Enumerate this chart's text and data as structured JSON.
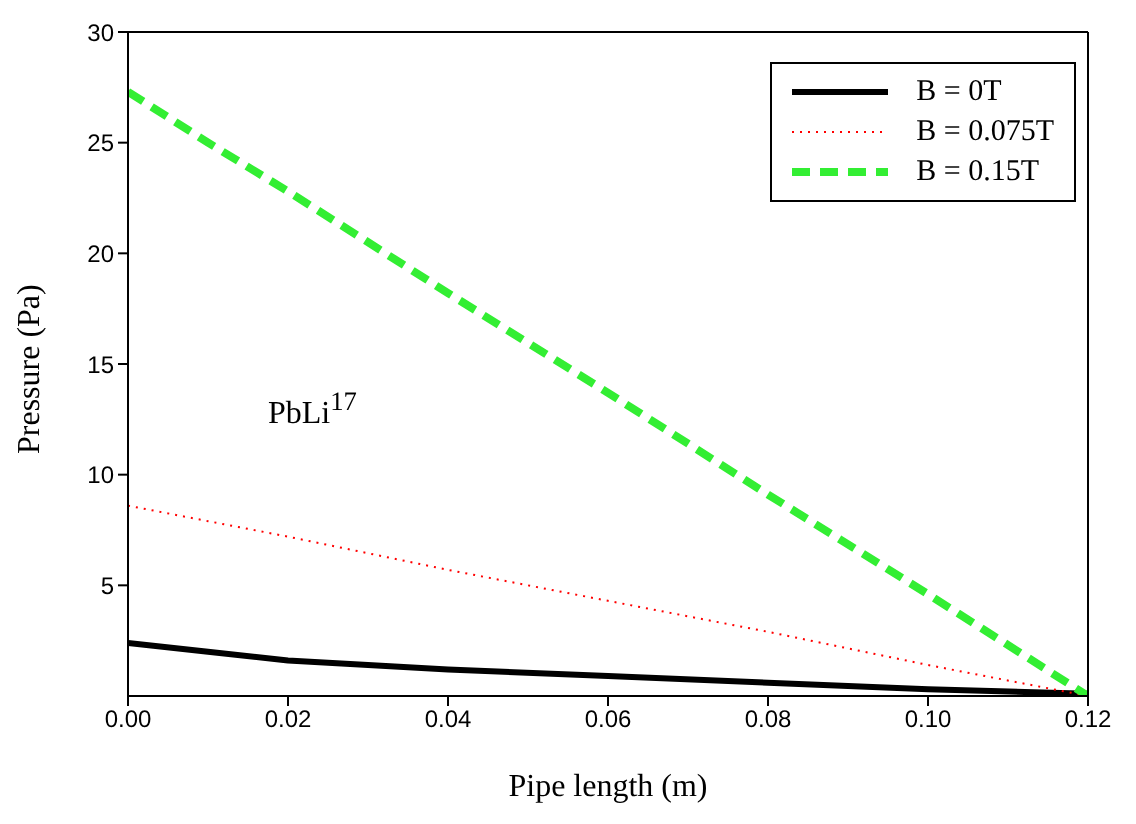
{
  "chart_data": {
    "type": "line",
    "xlabel": "Pipe length (m)",
    "ylabel": "Pressure (Pa)",
    "annotations": [
      "PbLi$^{17}$"
    ],
    "x": [
      0,
      0.01,
      0.02,
      0.04,
      0.06,
      0.08,
      0.1,
      0.12
    ],
    "series": [
      {
        "name": "B = 0T",
        "color": "#000000",
        "line_style": "solid",
        "values": [
          2.4,
          2.0,
          1.6,
          1.2,
          0.9,
          0.6,
          0.3,
          0.1
        ]
      },
      {
        "name": "B = 0.075T",
        "color": "#ff0000",
        "line_style": "dotted",
        "values": [
          8.6,
          7.9,
          7.2,
          5.7,
          4.3,
          2.9,
          1.4,
          0
        ]
      },
      {
        "name": "B = 0.15T",
        "color": "#33ee33",
        "line_style": "dashed",
        "values": [
          27.3,
          25.0,
          22.8,
          18.2,
          13.7,
          9.1,
          4.6,
          0
        ]
      }
    ],
    "xlim": [
      0,
      0.12
    ],
    "xticks": [
      {
        "value": 0,
        "label": "0.00"
      },
      {
        "value": 0.02,
        "label": "0.02"
      },
      {
        "value": 0.04,
        "label": "0.04"
      },
      {
        "value": 0.06,
        "label": "0.06"
      },
      {
        "value": 0.08,
        "label": "0.08"
      },
      {
        "value": 0.1,
        "label": "0.10"
      },
      {
        "value": 0.12,
        "label": "0.12"
      }
    ],
    "ylim": [
      0,
      30
    ],
    "yticks": [
      5,
      10,
      15,
      20,
      25,
      30
    ],
    "legend": "top right"
  }
}
